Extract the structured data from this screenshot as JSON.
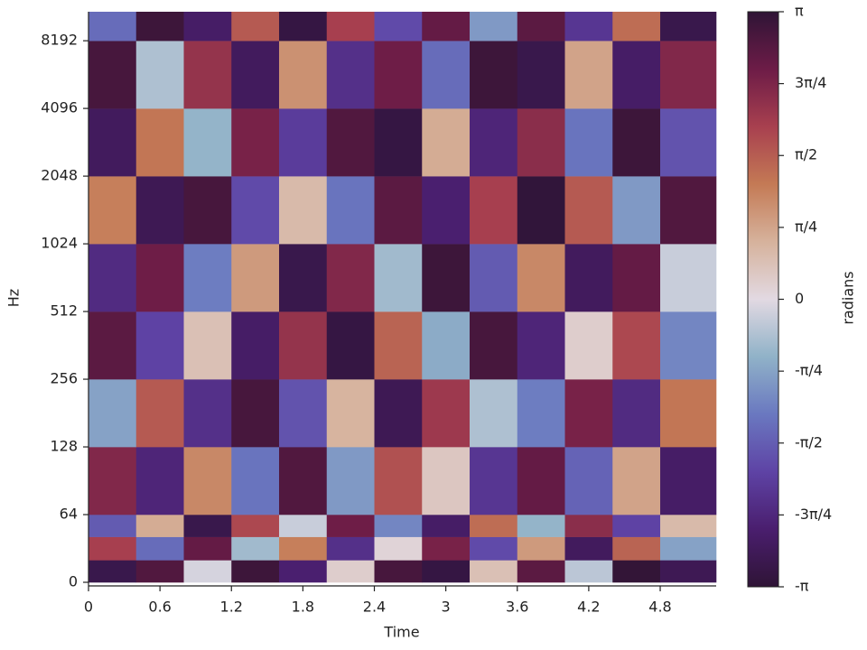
{
  "chart_data": {
    "type": "heatmap",
    "x_label": "Time",
    "y_label": "Hz",
    "xlim": [
      0,
      5.27
    ],
    "xticks": [
      0,
      0.6,
      1.2,
      1.8,
      2.4,
      3,
      3.6,
      4.2,
      4.8
    ],
    "ylim": [
      0,
      11025
    ],
    "yscale": "symlog",
    "linthresh": 64,
    "yticks": [
      0,
      64,
      128,
      256,
      512,
      1024,
      2048,
      4096,
      8192
    ],
    "x_edges": [
      0,
      0.4,
      0.8,
      1.2,
      1.6,
      2.0,
      2.4,
      2.8,
      3.2,
      3.6,
      4.0,
      4.4,
      4.8,
      5.27
    ],
    "y_edges": [
      0,
      21,
      43,
      64,
      128,
      256,
      512,
      1024,
      2048,
      4096,
      8192,
      11025
    ],
    "z": [
      [
        -2.9,
        2.8,
        -0.1,
        3.0,
        -2.5,
        0.2,
        2.9,
        -3.0,
        0.4,
        2.7,
        -0.3,
        3.1,
        -2.8
      ],
      [
        1.9,
        -1.4,
        2.6,
        -0.5,
        1.2,
        -2.2,
        0.1,
        2.4,
        -1.8,
        0.9,
        -2.7,
        1.5,
        -0.8
      ],
      [
        -1.6,
        0.7,
        -2.9,
        1.8,
        -0.2,
        2.5,
        -1.1,
        -2.6,
        1.4,
        -0.6,
        2.2,
        -1.9,
        0.5
      ],
      [
        2.3,
        -2.4,
        1.1,
        -1.3,
        2.8,
        -0.9,
        1.7,
        0.3,
        -2.1,
        2.6,
        -1.5,
        0.8,
        -2.6
      ],
      [
        -0.8,
        1.6,
        -2.2,
        2.9,
        -1.7,
        0.6,
        -2.8,
        2.0,
        -0.4,
        -1.2,
        2.4,
        -2.3,
        1.3
      ],
      [
        2.7,
        -1.9,
        0.4,
        -2.6,
        2.1,
        -3.0,
        1.5,
        -0.7,
        2.9,
        -2.4,
        0.2,
        1.8,
        -1.1
      ],
      [
        -2.3,
        2.5,
        -1.2,
        0.9,
        -2.9,
        2.3,
        -0.5,
        3.0,
        -1.6,
        1.1,
        -2.7,
        2.6,
        -0.2
      ],
      [
        1.2,
        -2.8,
        2.9,
        -1.8,
        0.5,
        -1.3,
        2.7,
        -2.5,
        1.9,
        -3.1,
        1.6,
        -0.9,
        2.8
      ],
      [
        -2.7,
        1.3,
        -0.6,
        2.4,
        -2.0,
        2.8,
        -3.0,
        0.7,
        -2.4,
        2.2,
        -1.3,
        3.0,
        -1.7
      ],
      [
        2.9,
        -0.4,
        2.1,
        -2.7,
        1.0,
        -2.2,
        2.5,
        -1.4,
        3.0,
        -2.9,
        0.8,
        -2.6,
        2.3
      ],
      [
        -1.4,
        3.0,
        -2.6,
        1.6,
        -3.0,
        1.9,
        -1.8,
        2.6,
        -0.9,
        2.7,
        -2.1,
        1.4,
        -2.9
      ]
    ],
    "colorbar": {
      "label": "radians",
      "lim": [
        -3.14159,
        3.14159
      ],
      "colormap": [
        "#2f1436",
        "#4a1e6e",
        "#5e43a5",
        "#6a78c0",
        "#90b2c8",
        "#e2d9e2",
        "#d6b29c",
        "#c47a55",
        "#a8404f",
        "#6d1c47",
        "#2f1436"
      ],
      "ticks": [
        {
          "value": 3.14159,
          "label": "π"
        },
        {
          "value": 2.35619,
          "label": "3π/4"
        },
        {
          "value": 1.5708,
          "label": "π/2"
        },
        {
          "value": 0.7854,
          "label": "π/4"
        },
        0,
        {
          "value": -0.7854,
          "label": "-π/4"
        },
        {
          "value": -1.5708,
          "label": "-π/2"
        },
        {
          "value": -2.35619,
          "label": "-3π/4"
        },
        {
          "value": -3.14159,
          "label": "-π"
        }
      ]
    }
  }
}
